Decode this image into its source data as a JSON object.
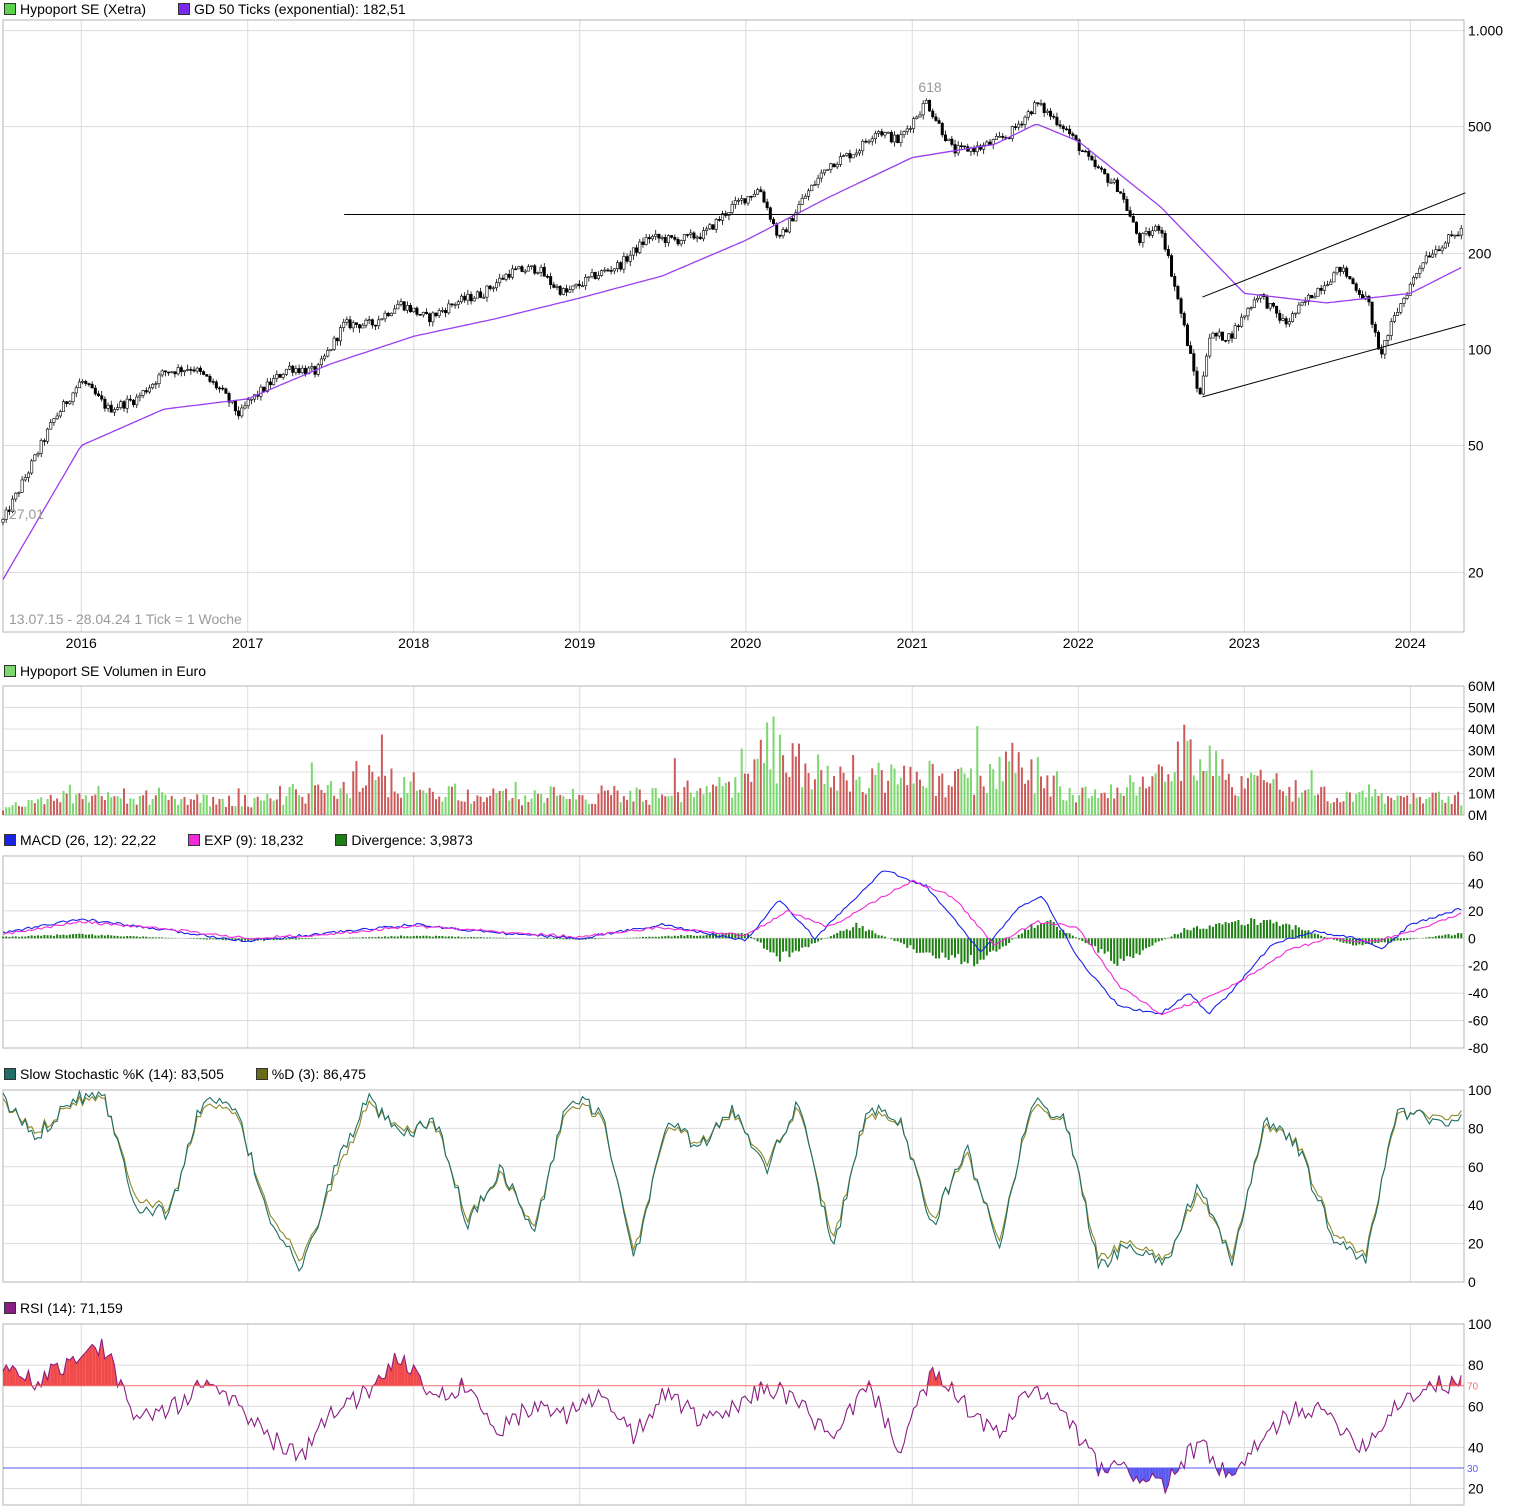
{
  "colors": {
    "grid": "#dcdcdc",
    "frame": "#b4b4b4",
    "up": "#7ad86e",
    "down": "#cc5a5a",
    "ema": "#9b3df0",
    "macd": "#1a22e8",
    "exp": "#f02ad8",
    "divergence": "#1d7f12",
    "stochK": "#1f6d66",
    "stochD": "#8e8a2b",
    "rsi": "#8a1e84",
    "rsiHigh": "#f04a4a",
    "rsiLow": "#5a5af0",
    "line70": "#f07070",
    "line30": "#5a5af0"
  },
  "legends": {
    "price": [
      {
        "label": "Hypoport SE (Xetra)",
        "color": "#5ad44a"
      },
      {
        "label": "GD 50 Ticks (exponential): 182,51",
        "color": "#7a2af0"
      }
    ],
    "volume": [
      {
        "label": "Hypoport SE Volumen in Euro",
        "color": "#7ad86e"
      }
    ],
    "macd": [
      {
        "label": "MACD (26, 12): 22,22",
        "color": "#1a22e8"
      },
      {
        "label": "EXP (9): 18,232",
        "color": "#f02ad8"
      },
      {
        "label": "Divergence: 3,9873",
        "color": "#1d7f12"
      }
    ],
    "stoch": [
      {
        "label": "Slow Stochastic %K (14): 83,505",
        "color": "#1f6d66"
      },
      {
        "label": "%D (3): 86,475",
        "color": "#6a6a1a"
      }
    ],
    "rsi": [
      {
        "label": "RSI (14): 71,159",
        "color": "#8a1e84"
      }
    ]
  },
  "annotations": {
    "range_note": "13.07.15 - 28.04.24   1 Tick = 1 Woche",
    "high_label": "618",
    "low_label": "27,01"
  },
  "chart_data": [
    {
      "type": "candlestick",
      "title": "Hypoport SE (Xetra)",
      "scale": "log",
      "ylim": [
        13,
        1080
      ],
      "x_tick_labels": [
        "2016",
        "2017",
        "2018",
        "2019",
        "2020",
        "2021",
        "2022",
        "2023",
        "2024"
      ],
      "y_tick_values": [
        1000,
        500,
        200,
        100,
        50,
        20
      ],
      "y_tick_labels": [
        "1.000",
        "500",
        "200",
        "100",
        "50",
        "20"
      ],
      "date_range": [
        "2015-07-13",
        "2024-04-28"
      ],
      "series": [
        {
          "name": "Hypoport SE (Xetra)",
          "x": [
            "2015-07-13",
            "2015-09-01",
            "2015-11-01",
            "2016-01-01",
            "2016-03-01",
            "2016-05-01",
            "2016-07-01",
            "2016-09-01",
            "2016-11-01",
            "2016-12-15",
            "2017-01-01",
            "2017-04-01",
            "2017-06-01",
            "2017-08-01",
            "2017-10-01",
            "2017-12-01",
            "2018-02-01",
            "2018-04-01",
            "2018-06-01",
            "2018-08-01",
            "2018-10-01",
            "2018-11-01",
            "2018-12-01",
            "2019-02-01",
            "2019-04-01",
            "2019-06-01",
            "2019-08-01",
            "2019-10-01",
            "2019-12-01",
            "2020-02-01",
            "2020-03-15",
            "2020-05-01",
            "2020-07-01",
            "2020-09-01",
            "2020-10-15",
            "2020-12-01",
            "2021-02-01",
            "2021-04-01",
            "2021-06-01",
            "2021-08-01",
            "2021-10-01",
            "2021-12-01",
            "2022-02-01",
            "2022-04-01",
            "2022-05-15",
            "2022-07-01",
            "2022-08-15",
            "2022-09-25",
            "2022-10-15",
            "2022-12-01",
            "2023-02-01",
            "2023-04-01",
            "2023-06-01",
            "2023-08-01",
            "2023-10-01",
            "2023-10-25",
            "2023-12-01",
            "2024-02-01",
            "2024-04-28"
          ],
          "close": [
            29,
            40,
            60,
            80,
            65,
            70,
            85,
            88,
            75,
            62,
            68,
            88,
            85,
            120,
            120,
            140,
            125,
            140,
            150,
            175,
            180,
            160,
            150,
            170,
            185,
            225,
            220,
            230,
            280,
            320,
            220,
            290,
            380,
            420,
            490,
            450,
            600,
            420,
            430,
            470,
            590,
            500,
            380,
            320,
            220,
            245,
            130,
            70,
            110,
            110,
            150,
            120,
            150,
            180,
            140,
            95,
            130,
            195,
            240
          ]
        },
        {
          "name": "GD 50 Ticks (exponential)",
          "x": [
            "2015-07-13",
            "2016-01-01",
            "2016-07-01",
            "2017-01-01",
            "2017-07-01",
            "2018-01-01",
            "2018-07-01",
            "2019-01-01",
            "2019-07-01",
            "2020-01-01",
            "2020-07-01",
            "2021-01-01",
            "2021-07-01",
            "2021-10-01",
            "2022-01-01",
            "2022-07-01",
            "2023-01-01",
            "2023-07-01",
            "2024-01-01",
            "2024-04-28"
          ],
          "values": [
            19,
            50,
            65,
            70,
            90,
            110,
            125,
            145,
            170,
            220,
            300,
            400,
            440,
            510,
            450,
            280,
            150,
            140,
            150,
            182.51
          ]
        }
      ],
      "trendlines": [
        {
          "from": [
            "2017-08-01",
            265
          ],
          "to": [
            "2024-05-01",
            265
          ]
        },
        {
          "from": [
            "2022-10-01",
            146
          ],
          "to": [
            "2024-05-01",
            310
          ]
        },
        {
          "from": [
            "2022-10-01",
            71
          ],
          "to": [
            "2024-05-01",
            120
          ]
        }
      ]
    },
    {
      "type": "bar",
      "title": "Hypoport SE Volumen in Euro",
      "ylim": [
        0,
        60
      ],
      "y_tick_labels": [
        "60M",
        "50M",
        "40M",
        "30M",
        "20M",
        "10M",
        "0M"
      ],
      "x": [
        "2015-07-13",
        "2016-01-01",
        "2016-07-01",
        "2017-01-01",
        "2017-08-01",
        "2017-09-01",
        "2018-06-01",
        "2019-01-01",
        "2019-06-01",
        "2020-01-01",
        "2020-02-15",
        "2020-03-15",
        "2020-09-01",
        "2021-01-01",
        "2021-06-01",
        "2021-08-01",
        "2022-01-01",
        "2022-06-01",
        "2022-09-01",
        "2022-12-01",
        "2023-06-01",
        "2024-04-28"
      ],
      "values": [
        3,
        12,
        8,
        7,
        15,
        20,
        9,
        11,
        10,
        15,
        40,
        30,
        18,
        20,
        16,
        28,
        12,
        15,
        30,
        18,
        12,
        9
      ]
    },
    {
      "type": "line",
      "title": "MACD (26, 12)",
      "ylim": [
        -80,
        60
      ],
      "y_tick_labels": [
        "60",
        "40",
        "20",
        "0",
        "-20",
        "-40",
        "-60",
        "-80"
      ],
      "series": [
        {
          "name": "MACD (26, 12)",
          "x": [
            "2015-07-13",
            "2016-01-01",
            "2016-07-01",
            "2017-01-01",
            "2017-07-01",
            "2018-01-01",
            "2018-07-01",
            "2019-01-01",
            "2019-07-01",
            "2020-01-01",
            "2020-03-15",
            "2020-06-01",
            "2020-09-01",
            "2020-11-01",
            "2021-02-01",
            "2021-06-01",
            "2021-09-01",
            "2021-10-15",
            "2022-01-01",
            "2022-04-01",
            "2022-07-01",
            "2022-09-01",
            "2022-10-15",
            "2022-12-01",
            "2023-03-01",
            "2023-06-01",
            "2023-09-01",
            "2023-11-01",
            "2024-01-01",
            "2024-04-28"
          ],
          "values": [
            4,
            14,
            6,
            -2,
            4,
            10,
            4,
            0,
            10,
            -2,
            28,
            0,
            30,
            50,
            38,
            -10,
            25,
            30,
            -15,
            -50,
            -55,
            -40,
            -55,
            -40,
            -5,
            5,
            0,
            -8,
            10,
            22.22
          ]
        },
        {
          "name": "EXP (9)",
          "x": [
            "2015-07-13",
            "2016-01-01",
            "2016-07-01",
            "2017-01-01",
            "2017-07-01",
            "2018-01-01",
            "2018-07-01",
            "2019-01-01",
            "2019-07-01",
            "2020-01-01",
            "2020-04-01",
            "2020-07-01",
            "2020-10-01",
            "2021-01-01",
            "2021-04-01",
            "2021-07-01",
            "2021-10-01",
            "2022-01-01",
            "2022-04-01",
            "2022-07-01",
            "2022-10-01",
            "2023-01-01",
            "2023-04-01",
            "2023-07-01",
            "2023-10-01",
            "2024-01-01",
            "2024-04-28"
          ],
          "values": [
            3,
            12,
            7,
            0,
            3,
            9,
            5,
            1,
            8,
            2,
            20,
            8,
            25,
            42,
            30,
            -5,
            12,
            8,
            -35,
            -55,
            -45,
            -30,
            -10,
            0,
            -3,
            5,
            18.232
          ]
        },
        {
          "name": "Divergence",
          "x": [
            "2015-07-13",
            "2016-01-01",
            "2017-01-01",
            "2018-01-01",
            "2019-01-01",
            "2020-01-01",
            "2020-03-15",
            "2020-09-01",
            "2021-02-01",
            "2021-06-01",
            "2021-10-15",
            "2022-04-01",
            "2022-09-01",
            "2023-03-01",
            "2023-09-01",
            "2024-04-28"
          ],
          "values": [
            1,
            3,
            -2,
            2,
            -1,
            4,
            -15,
            10,
            -12,
            -18,
            15,
            -18,
            8,
            14,
            -6,
            3.9873
          ]
        }
      ]
    },
    {
      "type": "line",
      "title": "Slow Stochastic",
      "ylim": [
        0,
        100
      ],
      "y_tick_labels": [
        "100",
        "80",
        "60",
        "40",
        "20",
        "0"
      ],
      "series": [
        {
          "name": "Slow Stochastic %K (14)",
          "values": [
            95,
            75,
            95,
            100,
            40,
            35,
            95,
            90,
            35,
            5,
            60,
            95,
            75,
            85,
            30,
            60,
            25,
            95,
            90,
            10,
            85,
            70,
            90,
            60,
            95,
            15,
            90,
            85,
            30,
            70,
            20,
            95,
            85,
            8,
            20,
            10,
            50,
            10,
            85,
            70,
            25,
            10,
            90,
            85,
            83.505
          ]
        },
        {
          "name": "%D (3)",
          "values": [
            93,
            78,
            93,
            98,
            45,
            37,
            92,
            88,
            38,
            10,
            55,
            92,
            78,
            83,
            33,
            57,
            28,
            92,
            88,
            14,
            82,
            72,
            88,
            63,
            92,
            20,
            87,
            84,
            33,
            67,
            23,
            92,
            84,
            12,
            22,
            12,
            46,
            13,
            82,
            72,
            28,
            13,
            88,
            87,
            86.475
          ]
        }
      ]
    },
    {
      "type": "line",
      "title": "RSI (14)",
      "ylim": [
        12,
        100
      ],
      "y_tick_labels": [
        "100",
        "80",
        "60",
        "40",
        "20"
      ],
      "reference_lines": [
        {
          "value": 70,
          "label": "70"
        },
        {
          "value": 30,
          "label": "30"
        }
      ],
      "series": [
        {
          "name": "RSI (14)",
          "values": [
            80,
            72,
            82,
            90,
            55,
            58,
            70,
            62,
            45,
            35,
            60,
            66,
            85,
            62,
            72,
            48,
            62,
            56,
            65,
            45,
            68,
            52,
            58,
            70,
            62,
            42,
            72,
            40,
            76,
            60,
            45,
            70,
            55,
            30,
            28,
            22,
            42,
            24,
            45,
            60,
            55,
            40,
            62,
            70,
            71.159
          ]
        }
      ]
    }
  ]
}
